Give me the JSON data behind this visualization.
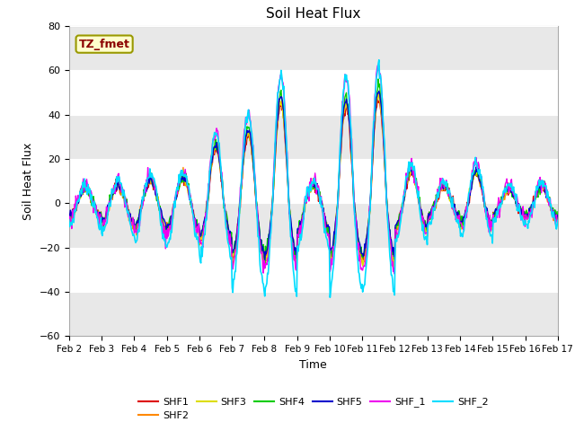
{
  "title": "Soil Heat Flux",
  "xlabel": "Time",
  "ylabel": "Soil Heat Flux",
  "ylim": [
    -60,
    80
  ],
  "yticks": [
    -60,
    -40,
    -20,
    0,
    20,
    40,
    60,
    80
  ],
  "xtick_labels": [
    "Feb 2",
    "Feb 3",
    "Feb 4",
    "Feb 5",
    "Feb 6",
    "Feb 7",
    "Feb 8",
    "Feb 9",
    "Feb 10",
    "Feb 11",
    "Feb 12",
    "Feb 13",
    "Feb 14",
    "Feb 15",
    "Feb 16",
    "Feb 17"
  ],
  "series_colors": {
    "SHF1": "#dd0000",
    "SHF2": "#ff8800",
    "SHF3": "#dddd00",
    "SHF4": "#00cc00",
    "SHF5": "#0000cc",
    "SHF_1": "#ee00ee",
    "SHF_2": "#00ddff"
  },
  "annotation_text": "TZ_fmet",
  "annotation_color": "#8b0000",
  "annotation_bg": "#ffffcc",
  "annotation_border": "#999900",
  "fig_bg": "#ffffff",
  "plot_bg": "#ffffff",
  "band_color": "#e8e8e8",
  "days": 15
}
